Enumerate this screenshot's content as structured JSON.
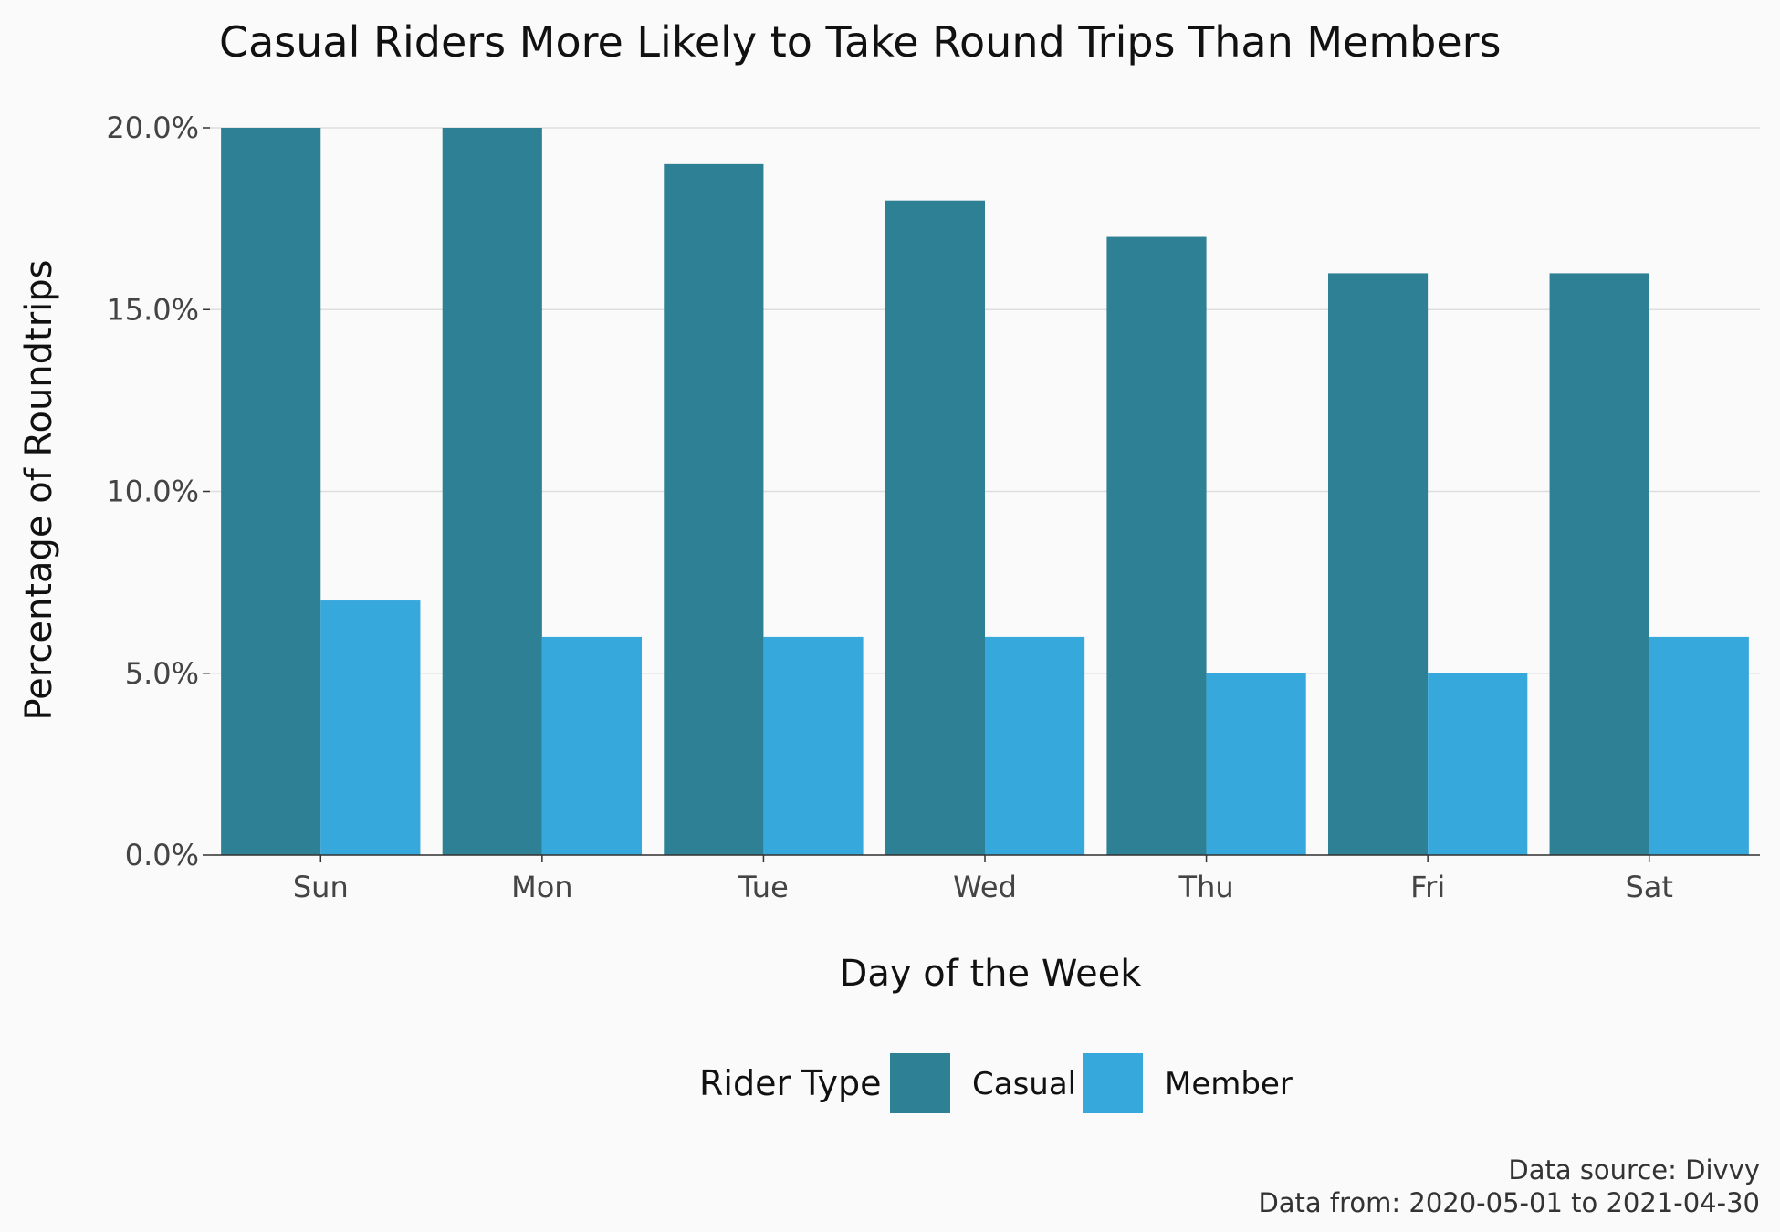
{
  "chart_data": {
    "type": "bar",
    "title": "Casual Riders More Likely to Take Round Trips Than Members",
    "xlabel": "Day of the Week",
    "ylabel": "Percentage of Roundtrips",
    "categories": [
      "Sun",
      "Mon",
      "Tue",
      "Wed",
      "Thu",
      "Fri",
      "Sat"
    ],
    "series": [
      {
        "name": "Casual",
        "color": "#2e8094",
        "values": [
          20,
          20,
          19,
          18,
          17,
          16,
          16
        ]
      },
      {
        "name": "Member",
        "color": "#36a8dc",
        "values": [
          7,
          6,
          6,
          6,
          5,
          5,
          6
        ]
      }
    ],
    "ylim": [
      0,
      20
    ],
    "yticks": [
      0,
      5,
      10,
      15,
      20
    ],
    "ytick_labels": [
      "0.0%",
      "5.0%",
      "10.0%",
      "15.0%",
      "20.0%"
    ],
    "grid": "horizontal",
    "legend": {
      "title": "Rider Type",
      "position": "bottom"
    },
    "caption": {
      "line1": "Data source: Divvy",
      "line2": "Data from: 2020-05-01 to 2021-04-30"
    }
  }
}
